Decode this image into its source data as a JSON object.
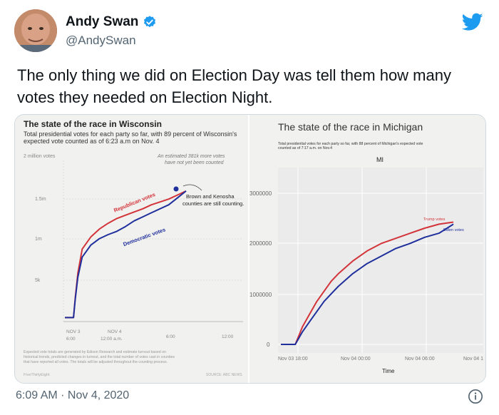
{
  "author": {
    "name": "Andy Swan",
    "handle": "@AndySwan"
  },
  "tweet": {
    "text": "The only thing we did on Election Day was tell them how many votes they needed on Election Night.",
    "timestamp": "6:09 AM · Nov 4, 2020"
  },
  "colors": {
    "republican": "#d3343a",
    "democratic": "#1f2f9c",
    "twitter_blue": "#1d9bf0"
  },
  "chart_data": [
    {
      "type": "line",
      "title": "The state of the race in Wisconsin",
      "subtitle": "Total presidential votes for each party so far, with 89 percent of Wisconsin's expected vote counted as of 6:23 a.m on Nov. 4",
      "ylabel": "2 million votes",
      "yticks": [
        "1.5m",
        "1m",
        "5k"
      ],
      "xticks": [
        "NOV 3 6:00",
        "NOV 4 12:00 a.m.",
        "6:00",
        "12:00"
      ],
      "annotation_top": "An estimated 381k more votes have not yet been counted",
      "annotation_point": "Brown and Kenosha counties are still counting.",
      "footnote": "Expected vote totals are generated by Edison Research and estimate turnout based on historical trends, predicted changes in turnout, and the total number of votes cast in counties that have reported all votes. The totals will be adjusted throughout the counting process.",
      "source": "FiveThirtyEight",
      "source_right": "SOURCE: ABC NEWS",
      "series": [
        {
          "name": "Republican votes",
          "x": [
            0,
            1.0,
            1.2,
            1.5,
            2,
            3,
            4,
            5,
            6,
            7,
            8,
            9,
            10,
            12,
            14
          ],
          "values": [
            0.05,
            0.05,
            0.3,
            0.6,
            0.9,
            1.05,
            1.15,
            1.22,
            1.28,
            1.32,
            1.36,
            1.4,
            1.45,
            1.52,
            1.62
          ]
        },
        {
          "name": "Democratic votes",
          "x": [
            0,
            1.0,
            1.2,
            1.5,
            2,
            3,
            4,
            5,
            6,
            7,
            8,
            9,
            10,
            12,
            14
          ],
          "values": [
            0.05,
            0.05,
            0.28,
            0.55,
            0.8,
            0.95,
            1.03,
            1.08,
            1.12,
            1.18,
            1.25,
            1.3,
            1.35,
            1.45,
            1.62
          ]
        }
      ]
    },
    {
      "type": "line",
      "title": "The state of the race in Michigan",
      "subtitle": "Total presidential votes for each party so far, with 88 percent of Michigan's expected vote counted as of 7:17 a.m. on Nov.4",
      "panel_label": "MI",
      "xlabel": "Time",
      "yticks": [
        "3000000",
        "2000000",
        "1000000",
        "0"
      ],
      "xticks": [
        "Nov 03 18:00",
        "Nov 04 00:00",
        "Nov 04 06:00",
        "Nov 04 1"
      ],
      "series": [
        {
          "name": "Trump votes",
          "x": [
            0,
            2,
            3,
            4,
            5,
            6,
            7,
            8,
            10,
            12,
            14,
            16,
            18,
            20,
            22,
            24
          ],
          "values": [
            0,
            0,
            350000,
            600000,
            850000,
            1050000,
            1250000,
            1400000,
            1650000,
            1850000,
            2000000,
            2100000,
            2200000,
            2300000,
            2380000,
            2420000
          ]
        },
        {
          "name": "Biden votes",
          "x": [
            0,
            2,
            3,
            4,
            5,
            6,
            7,
            8,
            10,
            12,
            14,
            16,
            18,
            20,
            22,
            24
          ],
          "values": [
            0,
            0,
            250000,
            450000,
            650000,
            850000,
            1000000,
            1150000,
            1400000,
            1600000,
            1750000,
            1900000,
            2000000,
            2120000,
            2200000,
            2380000
          ]
        }
      ]
    }
  ]
}
